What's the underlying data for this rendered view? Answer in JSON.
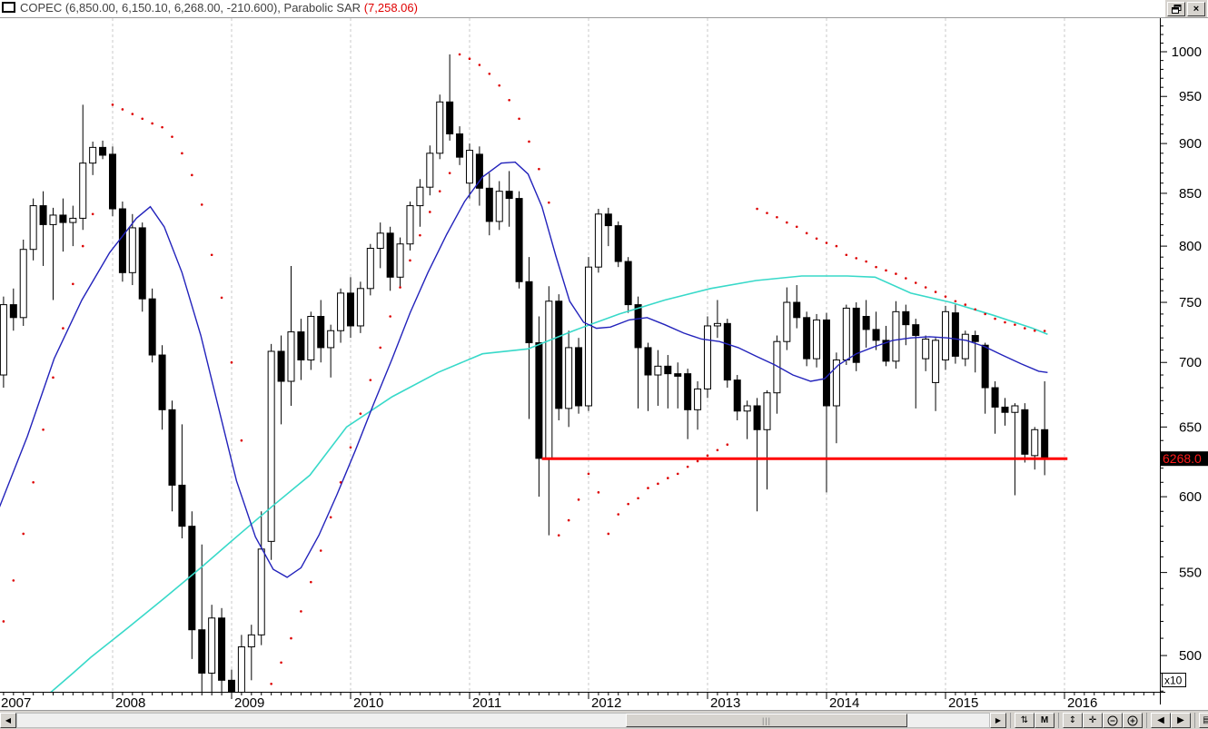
{
  "window": {
    "title_main": "COPEC (6,850.00, 6,150.10, 6,268.00, -210.600), Parabolic SAR ",
    "title_sar_value": "(7,258.06)",
    "restore_button": "restore",
    "close_button": "×"
  },
  "y_axis": {
    "major_tick_labels": [
      1000,
      950,
      900,
      850,
      800,
      750,
      700,
      650,
      600,
      550,
      500
    ],
    "minor_step": 10,
    "price_label": "6268.0",
    "price_label_color": "#ff1a1a",
    "price_label_bg": "#000000",
    "multiplier_label": "x10"
  },
  "x_axis": {
    "years": [
      "2007",
      "2008",
      "2009",
      "2010",
      "2011",
      "2012",
      "2013",
      "2014",
      "2015",
      "2016"
    ]
  },
  "statusbar": {
    "scroll_left": "◀",
    "scroll_right": "▶",
    "rescale": "⇅",
    "periodicity": "M",
    "vscale": "↕",
    "pan": "✛",
    "zoom_out": "−",
    "zoom_in": "+",
    "prev": "◀",
    "next": "▶",
    "page": "▤"
  },
  "chart_data": {
    "type": "candlestick",
    "symbol": "COPEC",
    "periodicity": "monthly",
    "start_month": "2007-02",
    "scale": "logarithmic",
    "y_unit_multiplier": 10,
    "grid": "vertical-dashed-yearly",
    "ohlc": [
      [
        690,
        755,
        680,
        748
      ],
      [
        748,
        762,
        726,
        737
      ],
      [
        737,
        806,
        730,
        797
      ],
      [
        797,
        845,
        787,
        838
      ],
      [
        838,
        852,
        782,
        820
      ],
      [
        820,
        836,
        752,
        829
      ],
      [
        829,
        845,
        795,
        822
      ],
      [
        822,
        838,
        800,
        826
      ],
      [
        826,
        941,
        815,
        880
      ],
      [
        880,
        902,
        868,
        896
      ],
      [
        896,
        903,
        884,
        888
      ],
      [
        889,
        897,
        828,
        835
      ],
      [
        835,
        842,
        768,
        776
      ],
      [
        776,
        830,
        765,
        817
      ],
      [
        817,
        822,
        742,
        753
      ],
      [
        753,
        762,
        700,
        706
      ],
      [
        706,
        714,
        648,
        663
      ],
      [
        663,
        670,
        590,
        608
      ],
      [
        608,
        652,
        572,
        580
      ],
      [
        580,
        590,
        498,
        515
      ],
      [
        515,
        568,
        466,
        490
      ],
      [
        490,
        530,
        476,
        522
      ],
      [
        522,
        528,
        478,
        486
      ],
      [
        486,
        492,
        460,
        478
      ],
      [
        478,
        512,
        468,
        505
      ],
      [
        505,
        518,
        486,
        512
      ],
      [
        512,
        590,
        506,
        565
      ],
      [
        570,
        715,
        558,
        709
      ],
      [
        709,
        722,
        652,
        685
      ],
      [
        685,
        782,
        666,
        725
      ],
      [
        725,
        736,
        686,
        702
      ],
      [
        702,
        742,
        694,
        738
      ],
      [
        738,
        752,
        700,
        712
      ],
      [
        712,
        731,
        688,
        726
      ],
      [
        726,
        762,
        716,
        758
      ],
      [
        758,
        772,
        720,
        730
      ],
      [
        730,
        768,
        724,
        762
      ],
      [
        762,
        802,
        756,
        798
      ],
      [
        798,
        822,
        780,
        812
      ],
      [
        812,
        818,
        760,
        772
      ],
      [
        772,
        808,
        763,
        802
      ],
      [
        802,
        842,
        796,
        838
      ],
      [
        838,
        864,
        818,
        856
      ],
      [
        856,
        898,
        848,
        890
      ],
      [
        890,
        952,
        884,
        944
      ],
      [
        944,
        997,
        903,
        910
      ],
      [
        910,
        918,
        878,
        886
      ],
      [
        860,
        900,
        845,
        893
      ],
      [
        889,
        897,
        838,
        855
      ],
      [
        855,
        870,
        810,
        823
      ],
      [
        823,
        862,
        815,
        852
      ],
      [
        852,
        872,
        818,
        845
      ],
      [
        845,
        852,
        762,
        768
      ],
      [
        768,
        790,
        656,
        716
      ],
      [
        716,
        738,
        600,
        627
      ],
      [
        627,
        764,
        574,
        751
      ],
      [
        751,
        757,
        655,
        664
      ],
      [
        664,
        726,
        650,
        712
      ],
      [
        712,
        720,
        660,
        666
      ],
      [
        666,
        790,
        662,
        781
      ],
      [
        781,
        835,
        776,
        830
      ],
      [
        830,
        836,
        800,
        819
      ],
      [
        819,
        823,
        781,
        786
      ],
      [
        786,
        790,
        741,
        748
      ],
      [
        748,
        755,
        664,
        712
      ],
      [
        712,
        716,
        662,
        690
      ],
      [
        690,
        710,
        666,
        697
      ],
      [
        697,
        706,
        664,
        691
      ],
      [
        691,
        700,
        664,
        689
      ],
      [
        691,
        695,
        641,
        663
      ],
      [
        663,
        685,
        648,
        679
      ],
      [
        679,
        738,
        672,
        730
      ],
      [
        730,
        752,
        720,
        732
      ],
      [
        732,
        736,
        680,
        686
      ],
      [
        686,
        690,
        655,
        662
      ],
      [
        662,
        670,
        641,
        666
      ],
      [
        666,
        672,
        590,
        648
      ],
      [
        648,
        678,
        605,
        676
      ],
      [
        676,
        722,
        660,
        717
      ],
      [
        717,
        763,
        710,
        750
      ],
      [
        750,
        765,
        728,
        737
      ],
      [
        737,
        742,
        697,
        703
      ],
      [
        703,
        740,
        696,
        735
      ],
      [
        735,
        741,
        603,
        666
      ],
      [
        666,
        708,
        638,
        702
      ],
      [
        702,
        748,
        698,
        745
      ],
      [
        745,
        750,
        693,
        700
      ],
      [
        738,
        752,
        712,
        727
      ],
      [
        727,
        742,
        710,
        718
      ],
      [
        718,
        730,
        697,
        701
      ],
      [
        701,
        751,
        695,
        742
      ],
      [
        742,
        748,
        714,
        731
      ],
      [
        731,
        736,
        664,
        722
      ],
      [
        703,
        722,
        693,
        719
      ],
      [
        684,
        720,
        662,
        718
      ],
      [
        702,
        747,
        694,
        742
      ],
      [
        741,
        748,
        699,
        705
      ],
      [
        703,
        726,
        697,
        723
      ],
      [
        722,
        726,
        692,
        717
      ],
      [
        714,
        716,
        660,
        680
      ],
      [
        680,
        685,
        645,
        665
      ],
      [
        665,
        672,
        651,
        661
      ],
      [
        661,
        668,
        601,
        666
      ],
      [
        663,
        668,
        624,
        630
      ],
      [
        629,
        650,
        619,
        648
      ],
      [
        648,
        685,
        615,
        626.8
      ]
    ],
    "ma_mid": {
      "name": "medium-term moving average",
      "color": "#2222bb",
      "points": [
        [
          -0.4,
          593
        ],
        [
          2.4,
          643
        ],
        [
          5.1,
          703
        ],
        [
          7.9,
          752
        ],
        [
          10.7,
          794
        ],
        [
          13.4,
          826
        ],
        [
          14.8,
          837
        ],
        [
          16.2,
          818
        ],
        [
          18,
          776
        ],
        [
          19.9,
          722
        ],
        [
          21.7,
          664
        ],
        [
          23.5,
          611
        ],
        [
          25.4,
          573
        ],
        [
          27.2,
          552
        ],
        [
          28.6,
          547
        ],
        [
          30,
          553
        ],
        [
          31.8,
          574
        ],
        [
          33.6,
          601
        ],
        [
          35.5,
          633
        ],
        [
          37.3,
          667
        ],
        [
          39.2,
          703
        ],
        [
          41,
          741
        ],
        [
          42.8,
          776
        ],
        [
          44.7,
          811
        ],
        [
          46.5,
          842
        ],
        [
          48.3,
          866
        ],
        [
          50.2,
          880
        ],
        [
          51.6,
          881
        ],
        [
          52.9,
          869
        ],
        [
          54.3,
          837
        ],
        [
          55.7,
          791
        ],
        [
          57.1,
          751
        ],
        [
          58.5,
          733
        ],
        [
          59.8,
          728
        ],
        [
          61.2,
          729
        ],
        [
          63.1,
          735
        ],
        [
          64.9,
          737
        ],
        [
          66.7,
          731
        ],
        [
          68.6,
          724
        ],
        [
          70.4,
          719
        ],
        [
          72.2,
          717
        ],
        [
          74.1,
          712
        ],
        [
          75.9,
          705
        ],
        [
          77.8,
          698
        ],
        [
          79.6,
          690
        ],
        [
          81.4,
          685
        ],
        [
          82.8,
          687
        ],
        [
          84.2,
          698
        ],
        [
          86,
          707
        ],
        [
          87.9,
          713
        ],
        [
          89.7,
          718
        ],
        [
          91.5,
          720
        ],
        [
          93.4,
          721
        ],
        [
          95.2,
          720
        ],
        [
          97.1,
          718
        ],
        [
          98.9,
          713
        ],
        [
          100.7,
          706
        ],
        [
          102.6,
          699
        ],
        [
          104.4,
          693
        ],
        [
          105.3,
          692
        ]
      ],
      "ends_at_price": 692
    },
    "ma_long": {
      "name": "long-term moving average",
      "color": "#38d9c9",
      "points": [
        [
          4.7,
          479
        ],
        [
          7,
          490
        ],
        [
          8.8,
          499
        ],
        [
          12.5,
          516
        ],
        [
          16.2,
          534
        ],
        [
          19.9,
          553
        ],
        [
          23.5,
          573
        ],
        [
          27.2,
          594
        ],
        [
          30.9,
          615
        ],
        [
          34.6,
          650
        ],
        [
          39.2,
          673
        ],
        [
          43.8,
          692
        ],
        [
          48.3,
          707
        ],
        [
          52.9,
          711
        ],
        [
          57.5,
          726
        ],
        [
          62.1,
          740
        ],
        [
          66.7,
          752
        ],
        [
          71.3,
          762
        ],
        [
          75.9,
          769
        ],
        [
          80.5,
          773
        ],
        [
          85.1,
          773
        ],
        [
          87.9,
          772
        ],
        [
          91.5,
          758
        ],
        [
          95.5,
          750
        ],
        [
          99.8,
          739
        ],
        [
          103.8,
          728
        ],
        [
          105.3,
          723
        ]
      ],
      "ends_at_price": 723
    },
    "parabolic_sar": {
      "name": "Parabolic SAR",
      "color": "#dd0000",
      "current_value_displayed": "7,258.06",
      "series": [
        [
          [
            0,
            520
          ],
          [
            1,
            545
          ],
          [
            2,
            575
          ],
          [
            3,
            610
          ],
          [
            4,
            648
          ],
          [
            5,
            688
          ],
          [
            6,
            728
          ],
          [
            7,
            766
          ],
          [
            8,
            800
          ],
          [
            9,
            830
          ]
        ],
        [
          [
            11,
            941
          ],
          [
            12,
            936
          ],
          [
            13,
            931
          ],
          [
            14,
            926
          ],
          [
            15,
            921
          ],
          [
            16,
            917
          ],
          [
            17,
            907
          ],
          [
            18,
            890
          ],
          [
            19,
            868
          ],
          [
            20,
            839
          ],
          [
            21,
            792
          ],
          [
            22,
            754
          ],
          [
            23,
            700
          ],
          [
            24,
            640
          ]
        ],
        [
          [
            24,
            460
          ],
          [
            25,
            466
          ],
          [
            26,
            474
          ],
          [
            27,
            484
          ],
          [
            28,
            496
          ],
          [
            29,
            510
          ],
          [
            30,
            526
          ],
          [
            31,
            544
          ],
          [
            32,
            564
          ],
          [
            33,
            586
          ],
          [
            34,
            610
          ],
          [
            35,
            635
          ],
          [
            36,
            660
          ],
          [
            37,
            686
          ],
          [
            38,
            712
          ],
          [
            39,
            738
          ],
          [
            40,
            763
          ],
          [
            41,
            787
          ],
          [
            42,
            810
          ],
          [
            43,
            832
          ],
          [
            44,
            852
          ],
          [
            45,
            870
          ]
        ],
        [
          [
            46,
            997
          ],
          [
            47,
            992
          ],
          [
            48,
            985
          ],
          [
            49,
            975
          ],
          [
            50,
            962
          ],
          [
            51,
            946
          ],
          [
            52,
            926
          ],
          [
            53,
            902
          ],
          [
            54,
            874
          ],
          [
            55,
            841
          ]
        ],
        [
          [
            56,
            574
          ],
          [
            57,
            584
          ],
          [
            58,
            598
          ],
          [
            59,
            616
          ]
        ],
        [
          [
            60,
            603
          ],
          [
            61,
            575
          ],
          [
            62,
            588
          ],
          [
            63,
            595
          ],
          [
            64,
            599
          ],
          [
            65,
            606
          ],
          [
            66,
            609
          ],
          [
            67,
            613
          ],
          [
            68,
            616
          ],
          [
            69,
            621
          ],
          [
            70,
            625
          ],
          [
            71,
            629
          ],
          [
            72,
            633
          ],
          [
            73,
            637
          ]
        ],
        [
          [
            76,
            835
          ],
          [
            77,
            831
          ],
          [
            78,
            827
          ],
          [
            79,
            822
          ],
          [
            80,
            818
          ],
          [
            81,
            812
          ],
          [
            82,
            807
          ],
          [
            83,
            803
          ],
          [
            84,
            800
          ],
          [
            85,
            792
          ],
          [
            86,
            789
          ],
          [
            87,
            786
          ],
          [
            88,
            781
          ],
          [
            89,
            778
          ],
          [
            90,
            775
          ],
          [
            91,
            771
          ],
          [
            92,
            767
          ],
          [
            93,
            763
          ],
          [
            94,
            759
          ],
          [
            95,
            755
          ],
          [
            96,
            751
          ],
          [
            97,
            748
          ],
          [
            98,
            744
          ],
          [
            99,
            740
          ],
          [
            100,
            736
          ],
          [
            101,
            733
          ],
          [
            102,
            731
          ],
          [
            103,
            728
          ],
          [
            104,
            726
          ],
          [
            105,
            725.8
          ]
        ]
      ]
    },
    "support_line": {
      "name": "horizontal support/resistance line",
      "color": "#ff0000",
      "price": 626.8,
      "from_month": 54.3,
      "to_month": 107.3
    }
  }
}
